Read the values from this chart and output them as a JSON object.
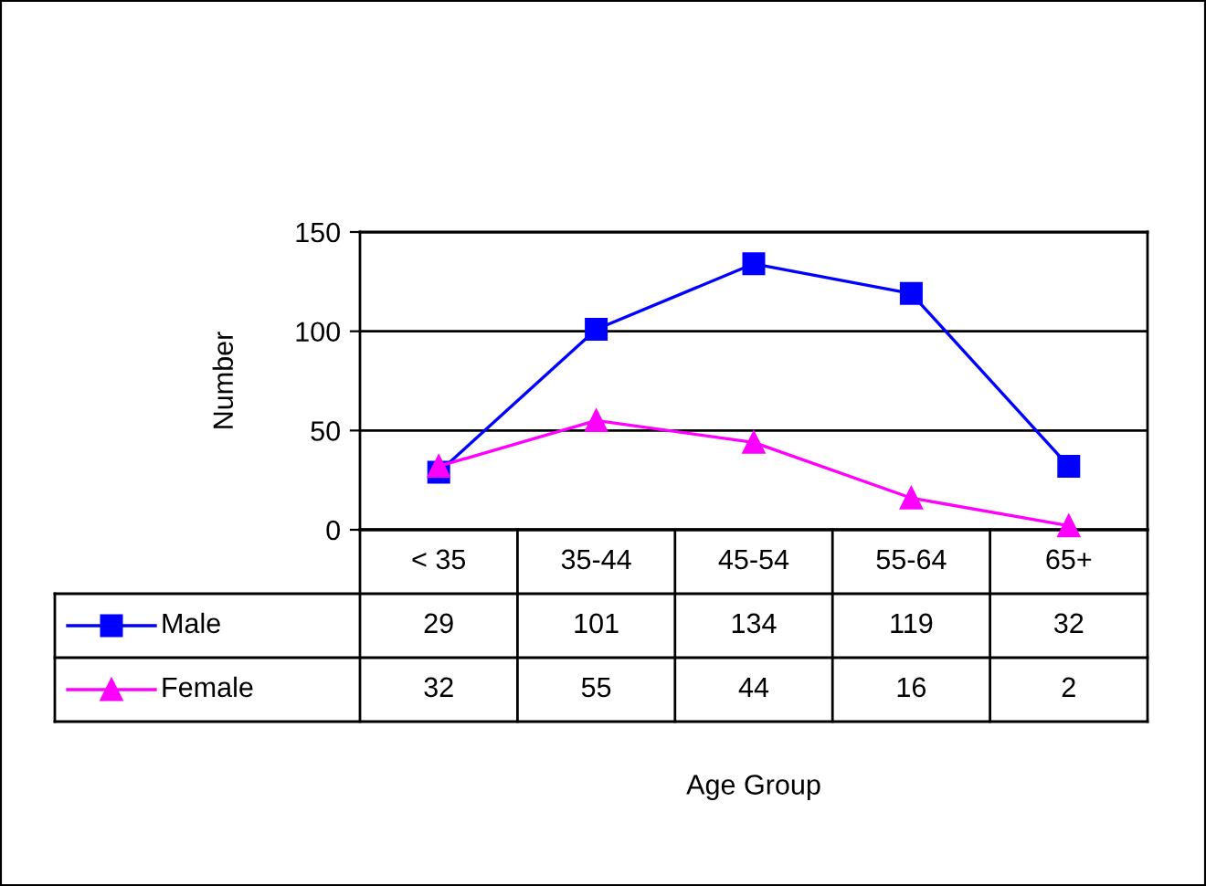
{
  "chart_data": {
    "type": "line",
    "annotations": [
      "Age Group"
    ],
    "ylabel": "Number",
    "categories": [
      "< 35",
      "35-44",
      "45-54",
      "55-64",
      "65+"
    ],
    "series": [
      {
        "name": "Male",
        "color": "#0000ff",
        "marker": "square",
        "values": [
          29,
          101,
          134,
          119,
          32
        ]
      },
      {
        "name": "Female",
        "color": "#ff00ff",
        "marker": "triangle",
        "values": [
          32,
          55,
          44,
          16,
          2
        ]
      }
    ],
    "ylim": [
      0,
      150
    ],
    "yticks": [
      0,
      50,
      100,
      150
    ],
    "grid": "y",
    "data_labels": true,
    "legend": "bottom left"
  }
}
